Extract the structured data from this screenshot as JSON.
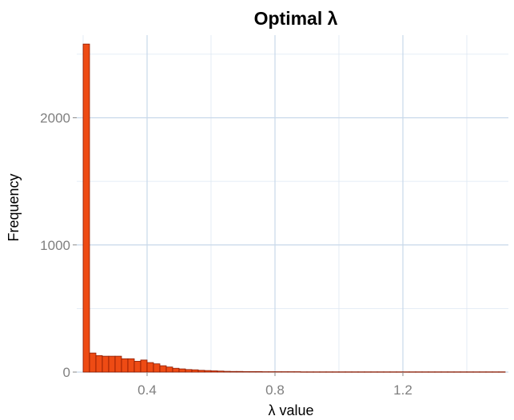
{
  "chart_data": {
    "type": "bar",
    "subtype": "histogram",
    "title": "Optimal λ",
    "xlabel": "λ value",
    "ylabel": "Frequency",
    "xlim": [
      0.18,
      1.53
    ],
    "ylim": [
      0,
      2650
    ],
    "x_ticks": [
      0.4,
      0.8,
      1.2
    ],
    "x_tick_labels": [
      "0.4",
      "0.8",
      "1.2"
    ],
    "y_ticks": [
      0,
      1000,
      2000
    ],
    "y_tick_labels": [
      "0",
      "1000",
      "2000"
    ],
    "grid": true,
    "legend": "none",
    "colors": {
      "bar_fill": "#ee4b14",
      "bar_stroke": "#8b1a00"
    },
    "bin_start": 0.2,
    "bin_width": 0.02,
    "counts": [
      2580,
      150,
      130,
      125,
      125,
      125,
      105,
      105,
      85,
      95,
      75,
      65,
      50,
      40,
      30,
      25,
      20,
      18,
      14,
      12,
      10,
      8,
      6,
      5,
      5,
      4,
      4,
      4,
      3,
      3,
      3,
      3,
      3,
      3,
      2,
      2,
      2,
      2,
      2,
      2,
      2,
      2,
      2,
      2,
      2,
      2,
      2,
      2,
      2,
      2,
      2,
      2,
      2,
      2,
      2,
      2,
      2,
      2,
      2,
      2,
      2,
      2,
      2,
      2,
      2,
      2
    ]
  }
}
